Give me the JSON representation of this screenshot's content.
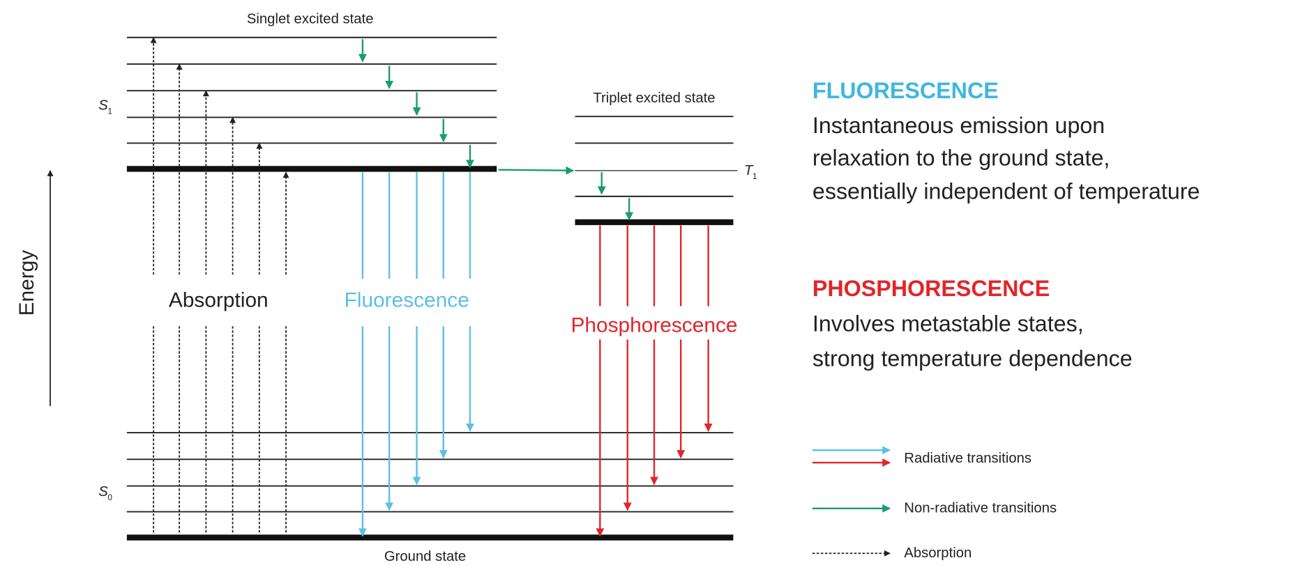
{
  "diagram": {
    "axis_label": "Energy",
    "singlet_state": "Singlet excited state",
    "triplet_state": "Triplet excited state",
    "ground_state": "Ground state",
    "s1_label": {
      "symbol": "S",
      "subscript": "1"
    },
    "s0_label": {
      "symbol": "S",
      "subscript": "0"
    },
    "t1_label": {
      "symbol": "T",
      "subscript": "1"
    },
    "absorption_label": "Absorption",
    "fluorescence_label": "Fluorescence",
    "phosphorescence_label": "Phosphorescence"
  },
  "descriptions": {
    "fluorescence": {
      "heading": "FLUORESCENCE",
      "lines": [
        "Instantaneous emission upon",
        "relaxation to the ground state,",
        "essentially independent of temperature"
      ]
    },
    "phosphorescence": {
      "heading": "PHOSPHORESCENCE",
      "lines": [
        "Involves metastable states,",
        "strong temperature dependence"
      ]
    }
  },
  "legend": {
    "radiative": "Radiative transitions",
    "non_radiative": "Non-radiative transitions",
    "absorption": "Absorption"
  }
}
